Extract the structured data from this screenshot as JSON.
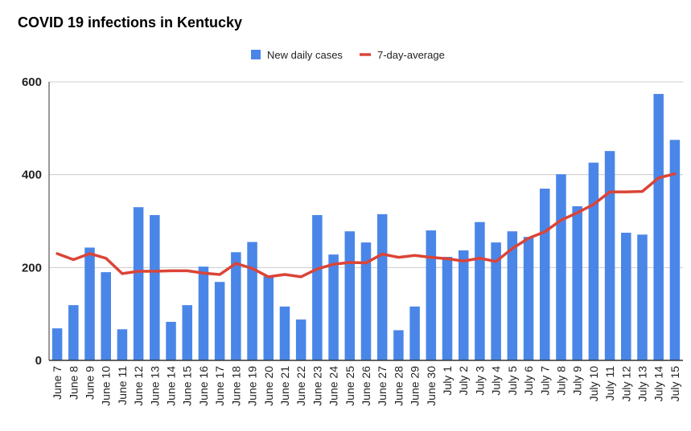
{
  "chart_data": {
    "type": "bar",
    "title": "COVID 19 infections in Kentucky",
    "xlabel": "",
    "ylabel": "",
    "ylim": [
      0,
      600
    ],
    "yticks": [
      0,
      200,
      400,
      600
    ],
    "grid": true,
    "legend_position": "top",
    "colors": {
      "bars": "#4a86e8",
      "line": "#db4437",
      "grid": "#cccccc",
      "axis": "#333333"
    },
    "categories": [
      "June 7",
      "June 8",
      "June 9",
      "June 10",
      "June 11",
      "June 12",
      "June 13",
      "June 14",
      "June 15",
      "June 16",
      "June 17",
      "June 18",
      "June 19",
      "June 20",
      "June 21",
      "June 22",
      "June 23",
      "June 24",
      "June 25",
      "June 26",
      "June 27",
      "June 28",
      "June 29",
      "June 30",
      "July 1",
      "July 2",
      "July 3",
      "July 4",
      "July 5",
      "July 6",
      "July 7",
      "July 8",
      "July 9",
      "July 10",
      "July 11",
      "July 12",
      "July 13",
      "July 14",
      "July 15"
    ],
    "series": [
      {
        "name": "New daily cases",
        "type": "bar",
        "values": [
          69,
          119,
          243,
          190,
          67,
          330,
          313,
          83,
          119,
          202,
          169,
          233,
          255,
          181,
          116,
          88,
          313,
          228,
          278,
          254,
          315,
          65,
          116,
          280,
          223,
          237,
          298,
          254,
          278,
          266,
          370,
          401,
          332,
          426,
          451,
          275,
          271,
          574,
          475
        ]
      },
      {
        "name": "7-day-average",
        "type": "line",
        "values": [
          230,
          217,
          230,
          220,
          187,
          192,
          192,
          193,
          193,
          188,
          185,
          209,
          198,
          180,
          185,
          180,
          197,
          207,
          211,
          210,
          229,
          222,
          226,
          222,
          219,
          214,
          220,
          213,
          241,
          263,
          277,
          302,
          318,
          336,
          363,
          363,
          364,
          393,
          402
        ]
      }
    ]
  }
}
